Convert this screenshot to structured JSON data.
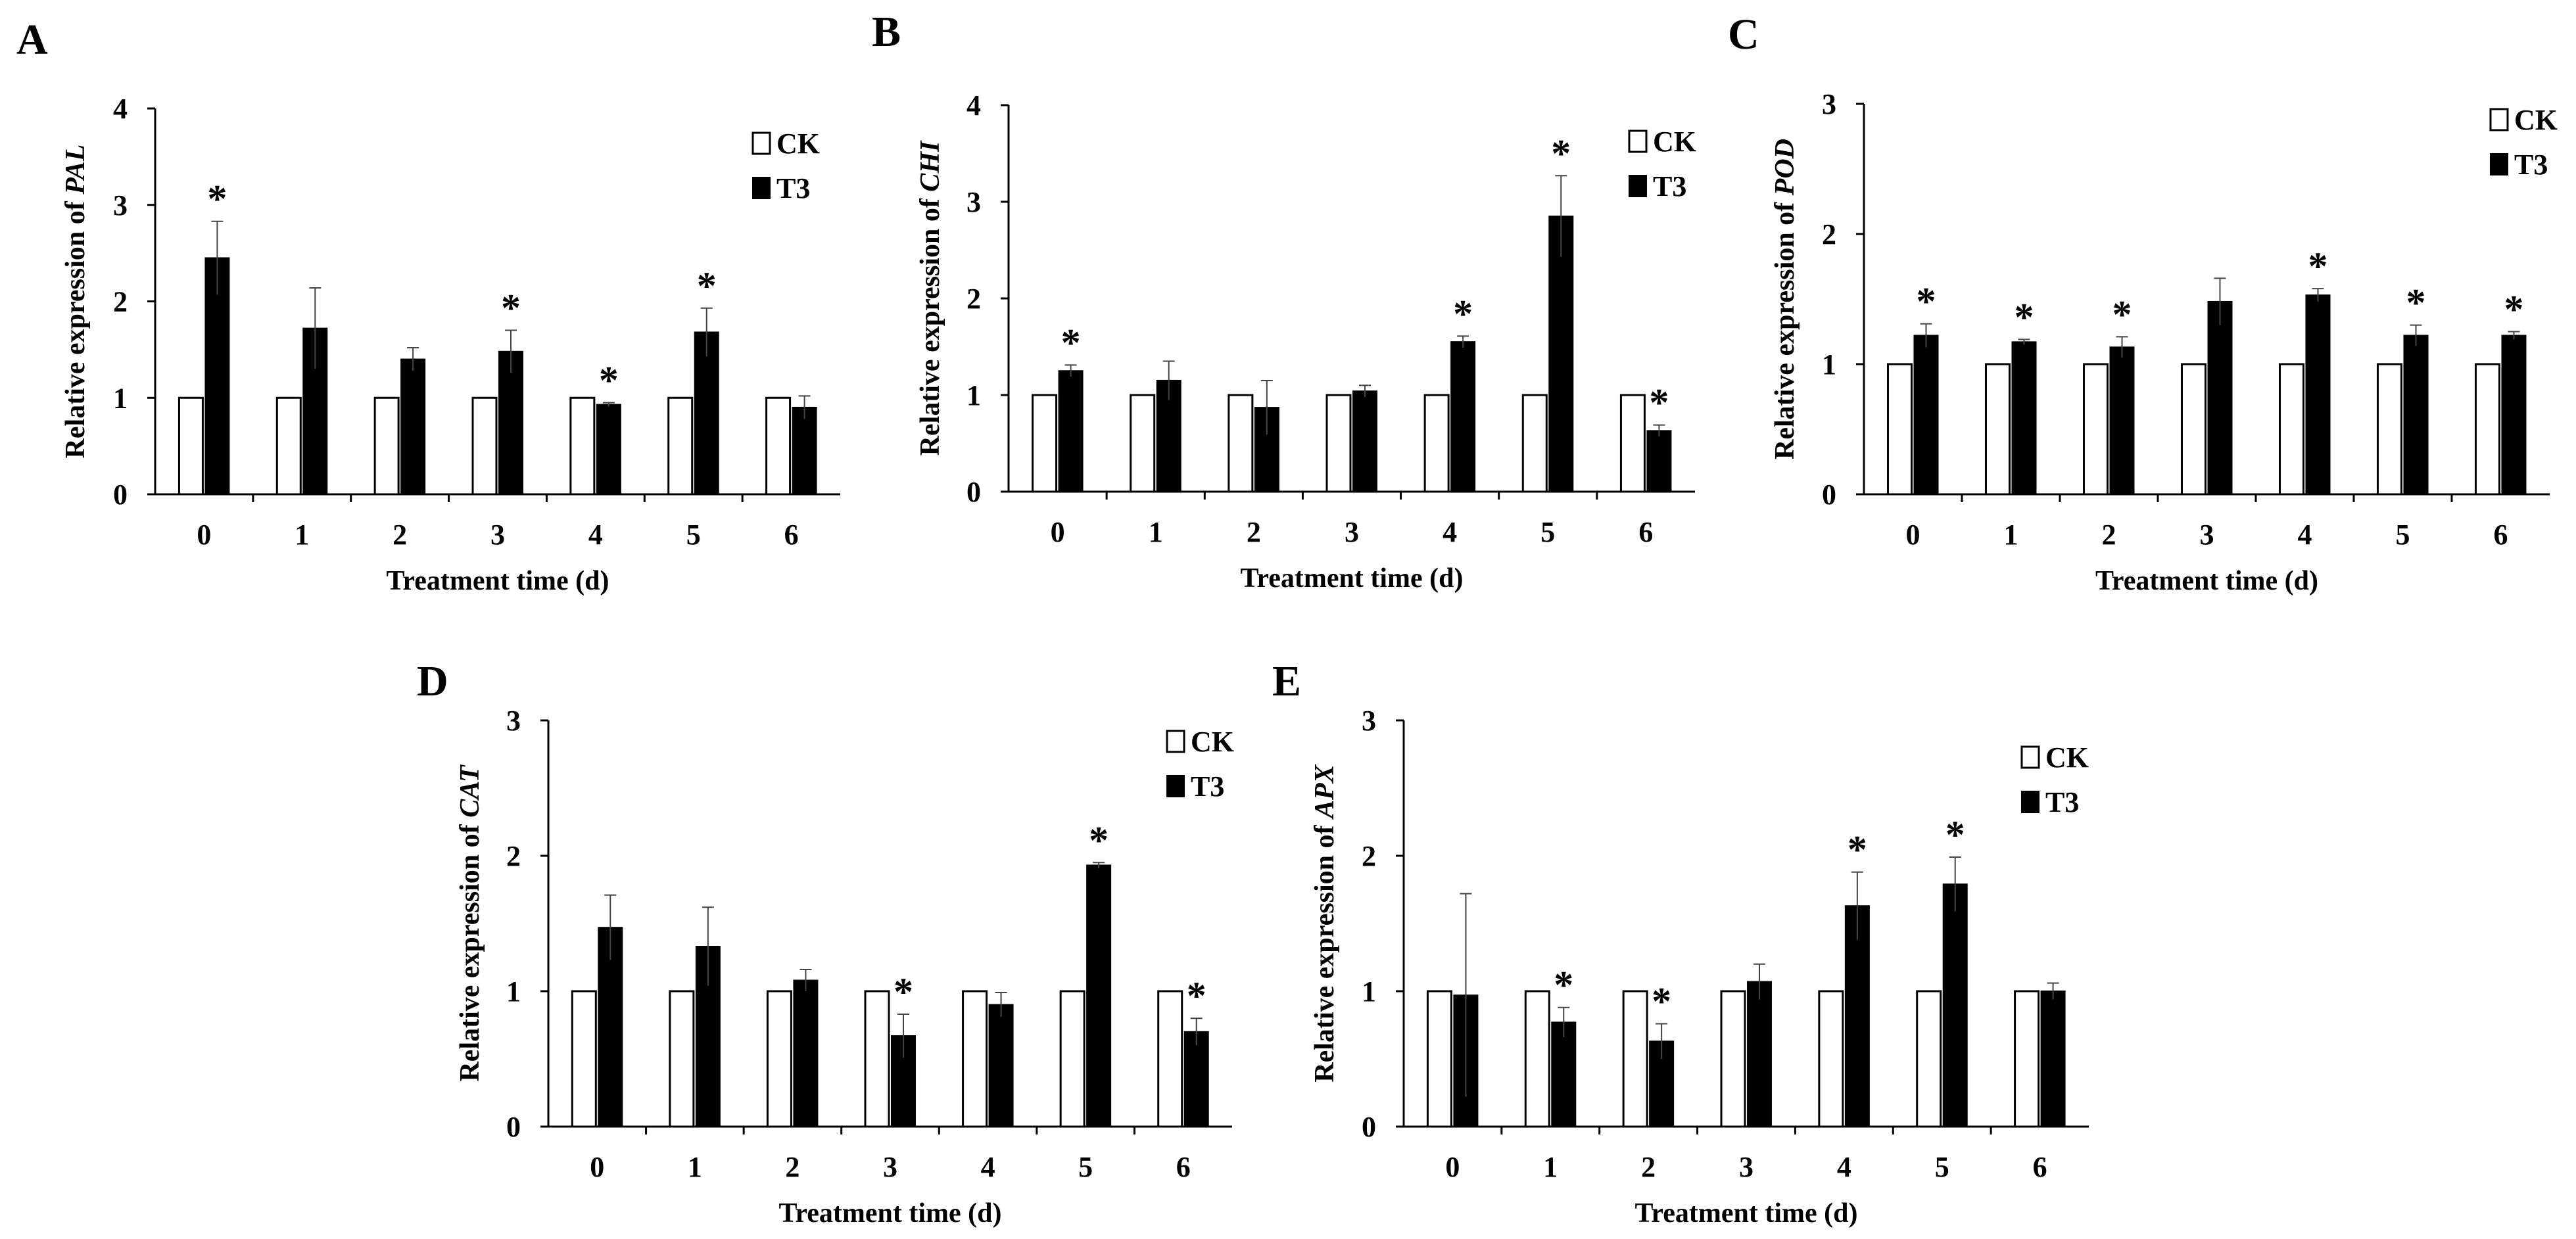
{
  "figure": {
    "legend": {
      "ck": "CK",
      "t3": "T3"
    },
    "colors": {
      "ck_fill": "#ffffff",
      "t3_fill": "#000000",
      "axis": "#000000",
      "errorbar": "#444444"
    }
  },
  "chart_data": [
    {
      "panel": "A",
      "type": "bar",
      "ylabel_prefix": "Relative expression of ",
      "ylabel_gene": "PAL",
      "xlabel": "Treatment time (d)",
      "categories": [
        "0",
        "1",
        "2",
        "3",
        "4",
        "5",
        "6"
      ],
      "ylim": [
        0,
        4
      ],
      "yticks": [
        "0",
        "1",
        "2",
        "3",
        "4"
      ],
      "series": [
        {
          "name": "CK",
          "values": [
            1,
            1,
            1,
            1,
            1,
            1,
            1
          ]
        },
        {
          "name": "T3",
          "values": [
            2.45,
            1.72,
            1.4,
            1.48,
            0.93,
            1.68,
            0.9
          ],
          "errors": [
            0.38,
            0.42,
            0.12,
            0.22,
            0.02,
            0.25,
            0.12
          ]
        }
      ],
      "significance": [
        "*",
        "",
        "",
        "*",
        "*",
        "*",
        ""
      ]
    },
    {
      "panel": "B",
      "type": "bar",
      "ylabel_prefix": "Relative expression of ",
      "ylabel_gene": "CHI",
      "xlabel": "Treatment time (d)",
      "categories": [
        "0",
        "1",
        "2",
        "3",
        "4",
        "5",
        "6"
      ],
      "ylim": [
        0,
        4
      ],
      "yticks": [
        "0",
        "1",
        "2",
        "3",
        "4"
      ],
      "series": [
        {
          "name": "CK",
          "values": [
            1,
            1,
            1,
            1,
            1,
            1,
            1
          ]
        },
        {
          "name": "T3",
          "values": [
            1.25,
            1.15,
            0.87,
            1.04,
            1.55,
            2.85,
            0.63
          ],
          "errors": [
            0.06,
            0.2,
            0.28,
            0.06,
            0.06,
            0.42,
            0.06
          ]
        }
      ],
      "significance": [
        "*",
        "",
        "",
        "",
        "*",
        "*",
        "*"
      ]
    },
    {
      "panel": "C",
      "type": "bar",
      "ylabel_prefix": "Relative expression of ",
      "ylabel_gene": "POD",
      "xlabel": "Treatment time (d)",
      "categories": [
        "0",
        "1",
        "2",
        "3",
        "4",
        "5",
        "6"
      ],
      "ylim": [
        0,
        3
      ],
      "yticks": [
        "0",
        "1",
        "2",
        "3"
      ],
      "series": [
        {
          "name": "CK",
          "values": [
            1,
            1,
            1,
            1,
            1,
            1,
            1
          ]
        },
        {
          "name": "T3",
          "values": [
            1.22,
            1.17,
            1.13,
            1.48,
            1.53,
            1.22,
            1.22
          ],
          "errors": [
            0.09,
            0.02,
            0.08,
            0.18,
            0.05,
            0.08,
            0.03
          ]
        }
      ],
      "significance": [
        "*",
        "*",
        "*",
        "",
        "*",
        "*",
        "*"
      ]
    },
    {
      "panel": "D",
      "type": "bar",
      "ylabel_prefix": "Relative expression of ",
      "ylabel_gene": "CAT",
      "xlabel": "Treatment time (d)",
      "categories": [
        "0",
        "1",
        "2",
        "3",
        "4",
        "5",
        "6"
      ],
      "ylim": [
        0,
        3
      ],
      "yticks": [
        "0",
        "1",
        "2",
        "3"
      ],
      "series": [
        {
          "name": "CK",
          "values": [
            1,
            1,
            1,
            1,
            1,
            1,
            1
          ]
        },
        {
          "name": "T3",
          "values": [
            1.47,
            1.33,
            1.08,
            0.67,
            0.9,
            1.93,
            0.7
          ],
          "errors": [
            0.24,
            0.29,
            0.08,
            0.16,
            0.09,
            0.02,
            0.1
          ]
        }
      ],
      "significance": [
        "",
        "",
        "",
        "*",
        "",
        "*",
        "*"
      ]
    },
    {
      "panel": "E",
      "type": "bar",
      "ylabel_prefix": "Relative expression of ",
      "ylabel_gene": "APX",
      "xlabel": "Treatment time (d)",
      "categories": [
        "0",
        "1",
        "2",
        "3",
        "4",
        "5",
        "6"
      ],
      "ylim": [
        0,
        3
      ],
      "yticks": [
        "0",
        "1",
        "2",
        "3"
      ],
      "series": [
        {
          "name": "CK",
          "values": [
            1,
            1,
            1,
            1,
            1,
            1,
            1
          ]
        },
        {
          "name": "T3",
          "values": [
            0.97,
            0.77,
            0.63,
            1.07,
            1.63,
            1.79,
            1.0
          ],
          "errors": [
            0.75,
            0.11,
            0.13,
            0.13,
            0.25,
            0.2,
            0.06
          ]
        }
      ],
      "significance": [
        "",
        "*",
        "*",
        "",
        "*",
        "*",
        ""
      ]
    }
  ]
}
